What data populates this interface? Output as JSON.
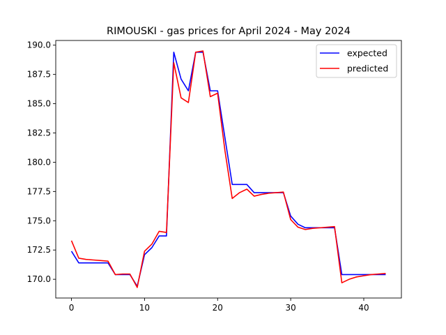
{
  "chart_data": {
    "type": "line",
    "title": "RIMOUSKI - gas prices for April 2024 - May 2024",
    "xlabel": "",
    "ylabel": "",
    "xlim": [
      -2.15,
      45.15
    ],
    "ylim": [
      168.4,
      190.4
    ],
    "xticks": [
      0,
      10,
      20,
      30,
      40
    ],
    "yticks": [
      170.0,
      172.5,
      175.0,
      177.5,
      180.0,
      182.5,
      185.0,
      187.5,
      190.0
    ],
    "grid": false,
    "legend_position": "top-right",
    "series": [
      {
        "name": "expected",
        "color": "#0000ff",
        "x": [
          0,
          1,
          2,
          3,
          4,
          5,
          6,
          7,
          8,
          9,
          10,
          11,
          12,
          13,
          14,
          15,
          16,
          17,
          18,
          19,
          20,
          21,
          22,
          23,
          24,
          25,
          26,
          27,
          28,
          29,
          30,
          31,
          32,
          33,
          34,
          35,
          36,
          37,
          38,
          39,
          40,
          41,
          42,
          43
        ],
        "y": [
          172.4,
          171.4,
          171.4,
          171.4,
          171.4,
          171.4,
          170.4,
          170.4,
          170.4,
          169.4,
          172.1,
          172.7,
          173.7,
          173.7,
          189.4,
          187.1,
          186.1,
          189.4,
          189.4,
          186.1,
          186.1,
          182.1,
          178.1,
          178.1,
          178.1,
          177.4,
          177.4,
          177.4,
          177.4,
          177.4,
          175.4,
          174.7,
          174.4,
          174.4,
          174.4,
          174.4,
          174.4,
          170.4,
          170.4,
          170.4,
          170.4,
          170.4,
          170.4,
          170.4
        ]
      },
      {
        "name": "predicted",
        "color": "#ff0000",
        "x": [
          0,
          1,
          2,
          3,
          4,
          5,
          6,
          7,
          8,
          9,
          10,
          11,
          12,
          13,
          14,
          15,
          16,
          17,
          18,
          19,
          20,
          21,
          22,
          23,
          24,
          25,
          26,
          27,
          28,
          29,
          30,
          31,
          32,
          33,
          34,
          35,
          36,
          37,
          38,
          39,
          40,
          41,
          42,
          43
        ],
        "y": [
          173.3,
          171.8,
          171.7,
          171.65,
          171.6,
          171.55,
          170.4,
          170.45,
          170.45,
          169.3,
          172.4,
          173.0,
          174.1,
          174.0,
          188.5,
          185.5,
          185.1,
          189.4,
          189.5,
          185.6,
          185.9,
          181.0,
          176.9,
          177.4,
          177.7,
          177.1,
          177.25,
          177.35,
          177.4,
          177.45,
          175.1,
          174.45,
          174.25,
          174.35,
          174.4,
          174.45,
          174.5,
          169.7,
          170.0,
          170.2,
          170.3,
          170.4,
          170.45,
          170.5
        ]
      }
    ]
  }
}
